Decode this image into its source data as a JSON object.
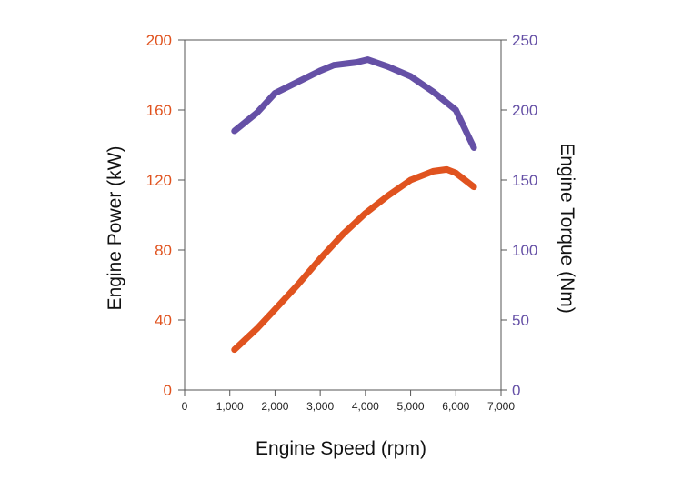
{
  "chart_data": {
    "type": "line",
    "xlabel": "Engine Speed (rpm)",
    "ylabel_left": "Engine Power (kW)",
    "ylabel_right": "Engine Torque (Nm)",
    "xlim": [
      0,
      7000
    ],
    "ylim_left": [
      0,
      200
    ],
    "ylim_right": [
      0,
      250
    ],
    "x_ticks": [
      "0",
      "1,000",
      "2,000",
      "3,000",
      "4,000",
      "5,000",
      "6,000",
      "7,000"
    ],
    "y_ticks_left": [
      "0",
      "40",
      "80",
      "120",
      "160",
      "200"
    ],
    "y_ticks_right": [
      "0",
      "50",
      "100",
      "150",
      "200",
      "250"
    ],
    "grid": false,
    "legend": "none",
    "colors": {
      "power": "#e0531f",
      "torque": "#6550a6",
      "axis": "#555555"
    },
    "series": [
      {
        "axis": "left",
        "x": [
          1100,
          1600,
          2000,
          2500,
          3000,
          3500,
          4000,
          4500,
          5000,
          5500,
          5800,
          6000,
          6400
        ],
        "values": [
          23,
          35,
          46,
          60,
          75,
          89,
          101,
          111,
          120,
          125,
          126,
          124,
          116
        ]
      },
      {
        "axis": "right",
        "x": [
          1100,
          1600,
          2000,
          2500,
          3000,
          3300,
          3800,
          4050,
          4500,
          5000,
          5500,
          6000,
          6400
        ],
        "values": [
          185,
          198,
          212,
          220,
          228,
          232,
          234,
          236,
          231,
          224,
          213,
          200,
          173
        ]
      }
    ]
  }
}
